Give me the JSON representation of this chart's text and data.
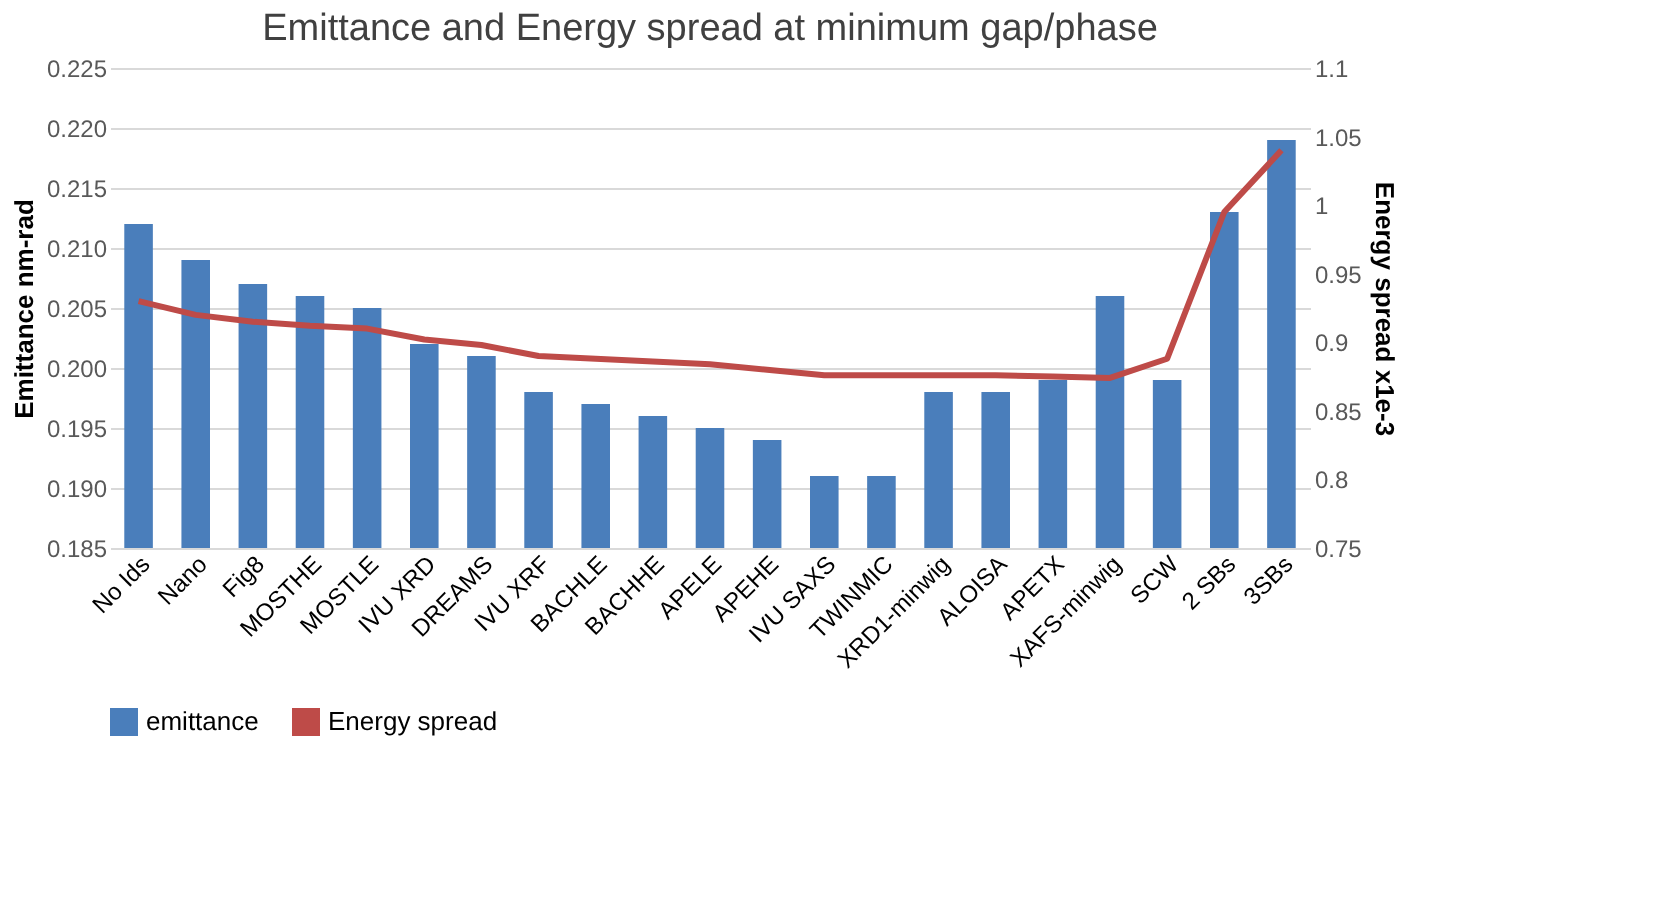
{
  "chart_data": {
    "type": "bar",
    "title": "Emittance and Energy spread at minimum gap/phase",
    "categories": [
      "No Ids",
      "Nano",
      "Fig8",
      "MOSTHE",
      "MOSTLE",
      "IVU XRD",
      "DREAMS",
      "IVU  XRF",
      "BACHLE",
      "BACHHE",
      "APELE",
      "APEHE",
      "IVU SAXS",
      "TWINMIC",
      "XRD1-minwig",
      "ALOISA",
      "APETX",
      "XAFS-minwig",
      "SCW",
      "2 SBs",
      "3SBs"
    ],
    "series": [
      {
        "name": "emittance",
        "color": "#4a7ebb",
        "values": [
          0.212,
          0.209,
          0.207,
          0.206,
          0.205,
          0.202,
          0.201,
          0.198,
          0.197,
          0.196,
          0.195,
          0.194,
          0.191,
          0.191,
          0.198,
          0.198,
          0.199,
          0.206,
          0.199,
          0.213,
          0.219
        ]
      },
      {
        "name": "Energy spread",
        "color": "#be4b48",
        "type": "line",
        "axis": "y2",
        "values": [
          0.93,
          0.92,
          0.915,
          0.912,
          0.91,
          0.902,
          0.898,
          0.89,
          0.888,
          0.886,
          0.884,
          0.88,
          0.876,
          0.876,
          0.876,
          0.876,
          0.875,
          0.874,
          0.888,
          0.995,
          1.04
        ]
      }
    ],
    "ylabel": "Emittance  nm-rad",
    "y2label": "Energy spread x1e-3",
    "ylim": [
      0.185,
      0.225
    ],
    "yticks": [
      {
        "value": 0.185,
        "label": "0.185"
      },
      {
        "value": 0.19,
        "label": "0.190"
      },
      {
        "value": 0.195,
        "label": "0.195"
      },
      {
        "value": 0.2,
        "label": "0.200"
      },
      {
        "value": 0.205,
        "label": "0.205"
      },
      {
        "value": 0.21,
        "label": "0.210"
      },
      {
        "value": 0.215,
        "label": "0.215"
      },
      {
        "value": 0.22,
        "label": "0.220"
      },
      {
        "value": 0.225,
        "label": "0.225"
      }
    ],
    "y2lim": [
      0.75,
      1.1
    ],
    "y2ticks": [
      0.75,
      0.8,
      0.85,
      0.9,
      0.95,
      1,
      1.05,
      1.1
    ],
    "grid": "y",
    "legend": "bottom",
    "line_style": "solid"
  }
}
